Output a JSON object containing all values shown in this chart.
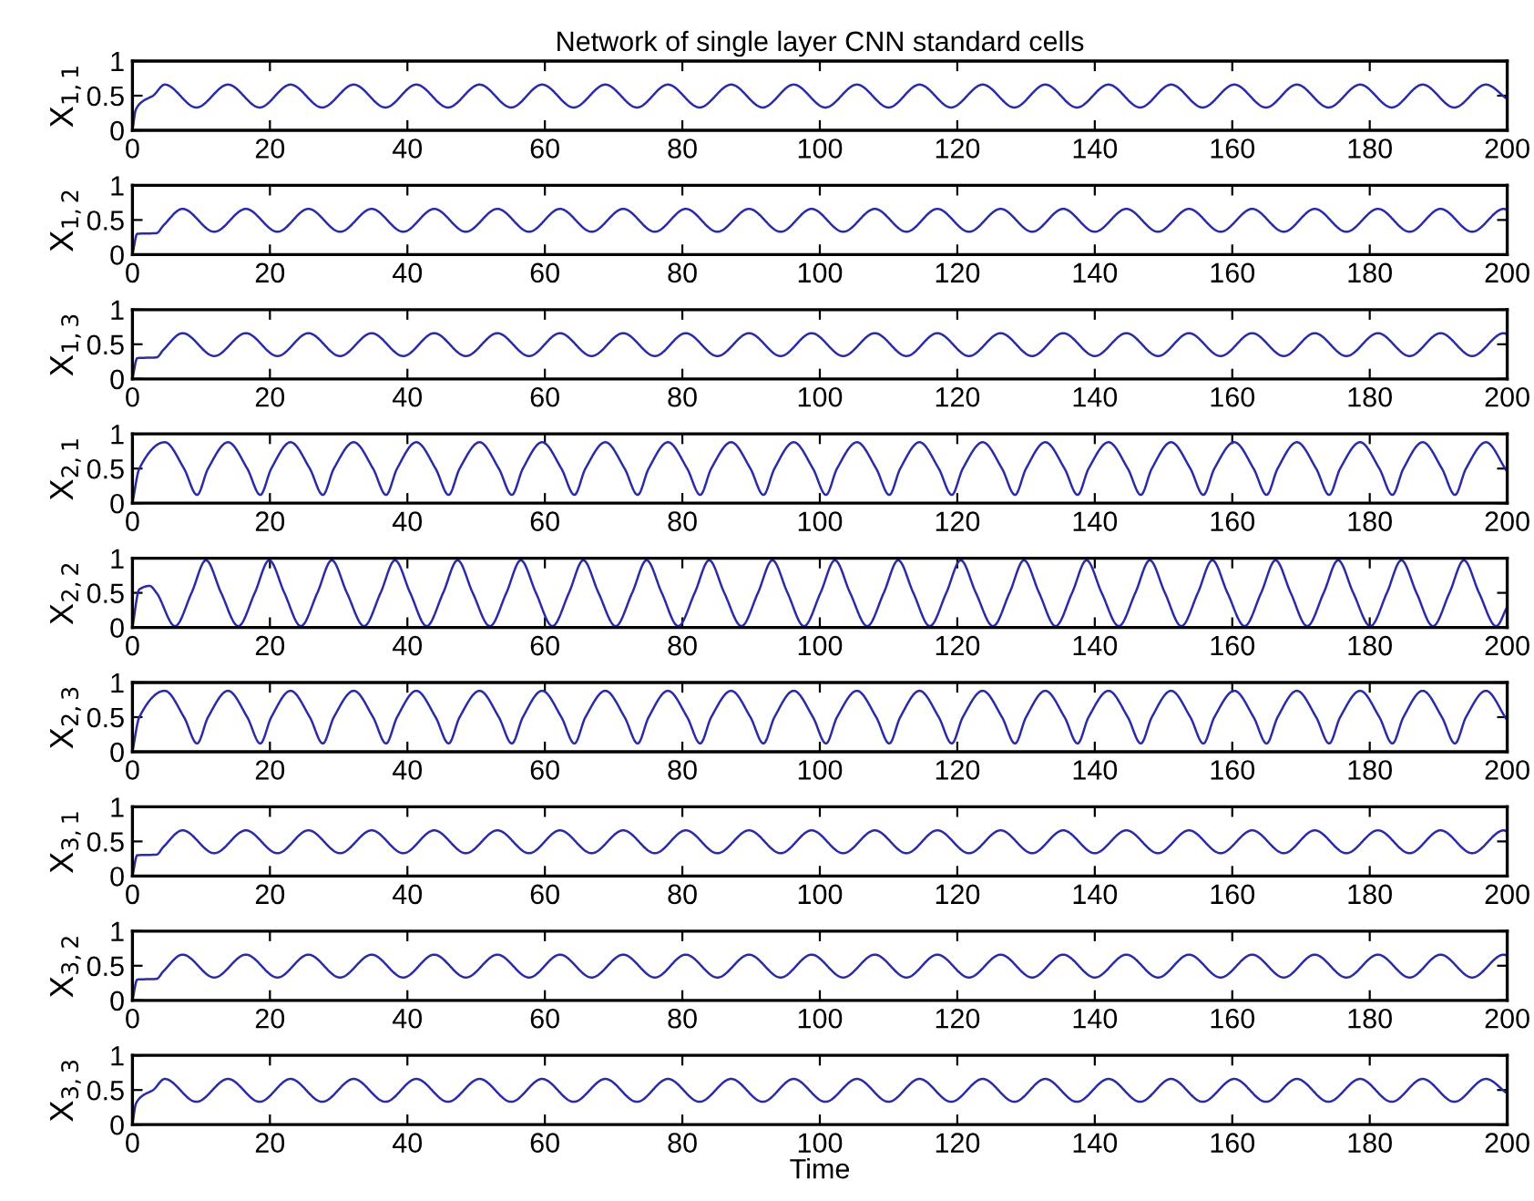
{
  "chart_data": [
    {
      "type": "line",
      "title": "Network of single layer CNN standard cells",
      "ylabel": "X$_{1,1}$",
      "xlim": [
        0,
        200
      ],
      "ylim": [
        0,
        1
      ],
      "xticks": [
        0,
        20,
        40,
        60,
        80,
        100,
        120,
        140,
        160,
        180,
        200
      ],
      "yticks": [
        0,
        0.5,
        1
      ],
      "grid": false,
      "line_style": "solid",
      "marker": "none",
      "series": [
        {
          "color": "#2b2ba6",
          "x": [
            0,
            0.5,
            1.5,
            3,
            4.7,
            9.3,
            13.9,
            18.5,
            23.0,
            27.6,
            32.2,
            36.8,
            41.3,
            45.9,
            50.5,
            55.1,
            59.6,
            64.2,
            68.8,
            73.4,
            77.9,
            82.5,
            87.1,
            91.7,
            96.2,
            100.8,
            105.4,
            110.0,
            114.5,
            119.1,
            123.7,
            128.3,
            132.8,
            137.4,
            142.0,
            146.6,
            151.1,
            155.7,
            160.3,
            164.9,
            169.4,
            174.0,
            178.6,
            183.2,
            187.7,
            192.3,
            196.9,
            200
          ],
          "values": [
            0,
            0.3,
            0.42,
            0.5,
            0.66,
            0.33,
            0.66,
            0.33,
            0.66,
            0.33,
            0.66,
            0.33,
            0.66,
            0.33,
            0.66,
            0.33,
            0.66,
            0.33,
            0.66,
            0.33,
            0.66,
            0.33,
            0.66,
            0.33,
            0.66,
            0.33,
            0.66,
            0.33,
            0.66,
            0.33,
            0.66,
            0.33,
            0.66,
            0.33,
            0.66,
            0.33,
            0.66,
            0.33,
            0.66,
            0.33,
            0.66,
            0.33,
            0.66,
            0.33,
            0.66,
            0.33,
            0.66,
            0.45
          ]
        }
      ]
    },
    {
      "type": "line",
      "ylabel": "X$_{1,2}$",
      "xlim": [
        0,
        200
      ],
      "ylim": [
        0,
        1
      ],
      "xticks": [
        0,
        20,
        40,
        60,
        80,
        100,
        120,
        140,
        160,
        180,
        200
      ],
      "yticks": [
        0,
        0.5,
        1
      ],
      "grid": false,
      "line_style": "solid",
      "marker": "none",
      "series": [
        {
          "color": "#2b2ba6",
          "x": [
            0,
            0.7,
            3.5,
            4.5,
            7.3,
            11.9,
            16.5,
            21.1,
            25.6,
            30.2,
            34.8,
            39.4,
            43.9,
            48.5,
            53.1,
            57.7,
            62.2,
            66.8,
            71.4,
            76.0,
            80.5,
            85.1,
            89.7,
            94.3,
            98.8,
            103.4,
            108.0,
            112.6,
            117.1,
            121.7,
            126.3,
            130.9,
            135.4,
            140.0,
            144.6,
            149.2,
            153.7,
            158.3,
            162.9,
            167.5,
            172.0,
            176.6,
            181.2,
            185.8,
            190.3,
            194.9,
            199.5,
            200
          ],
          "values": [
            0,
            0.3,
            0.31,
            0.42,
            0.66,
            0.33,
            0.66,
            0.33,
            0.66,
            0.33,
            0.66,
            0.33,
            0.66,
            0.33,
            0.66,
            0.33,
            0.66,
            0.33,
            0.66,
            0.33,
            0.66,
            0.33,
            0.66,
            0.33,
            0.66,
            0.33,
            0.66,
            0.33,
            0.66,
            0.33,
            0.66,
            0.33,
            0.66,
            0.33,
            0.66,
            0.33,
            0.66,
            0.33,
            0.66,
            0.33,
            0.66,
            0.33,
            0.66,
            0.33,
            0.66,
            0.33,
            0.66,
            0.64
          ]
        }
      ]
    },
    {
      "type": "line",
      "ylabel": "X$_{1,3}$",
      "xlim": [
        0,
        200
      ],
      "ylim": [
        0,
        1
      ],
      "xticks": [
        0,
        20,
        40,
        60,
        80,
        100,
        120,
        140,
        160,
        180,
        200
      ],
      "yticks": [
        0,
        0.5,
        1
      ],
      "grid": false,
      "line_style": "solid",
      "marker": "none",
      "series": [
        {
          "color": "#2b2ba6",
          "x": [
            0,
            0.7,
            3.5,
            4.5,
            7.3,
            11.9,
            16.5,
            21.1,
            25.6,
            30.2,
            34.8,
            39.4,
            43.9,
            48.5,
            53.1,
            57.7,
            62.2,
            66.8,
            71.4,
            76.0,
            80.5,
            85.1,
            89.7,
            94.3,
            98.8,
            103.4,
            108.0,
            112.6,
            117.1,
            121.7,
            126.3,
            130.9,
            135.4,
            140.0,
            144.6,
            149.2,
            153.7,
            158.3,
            162.9,
            167.5,
            172.0,
            176.6,
            181.2,
            185.8,
            190.3,
            194.9,
            199.5,
            200
          ],
          "values": [
            0,
            0.3,
            0.31,
            0.42,
            0.66,
            0.33,
            0.66,
            0.33,
            0.66,
            0.33,
            0.66,
            0.33,
            0.66,
            0.33,
            0.66,
            0.33,
            0.66,
            0.33,
            0.66,
            0.33,
            0.66,
            0.33,
            0.66,
            0.33,
            0.66,
            0.33,
            0.66,
            0.33,
            0.66,
            0.33,
            0.66,
            0.33,
            0.66,
            0.33,
            0.66,
            0.33,
            0.66,
            0.33,
            0.66,
            0.33,
            0.66,
            0.33,
            0.66,
            0.33,
            0.66,
            0.33,
            0.66,
            0.64
          ]
        }
      ]
    },
    {
      "type": "line",
      "ylabel": "X$_{2,1}$",
      "xlim": [
        0,
        200
      ],
      "ylim": [
        0,
        1
      ],
      "xticks": [
        0,
        20,
        40,
        60,
        80,
        100,
        120,
        140,
        160,
        180,
        200
      ],
      "yticks": [
        0,
        0.5,
        1
      ],
      "grid": false,
      "line_style": "solid",
      "marker": "none",
      "series": [
        {
          "color": "#2b2ba6",
          "x": [
            0,
            1,
            4.7,
            7.5,
            9.4,
            11.0,
            13.9,
            16.7,
            18.6,
            20.2,
            23.0,
            25.8,
            27.7,
            29.3,
            32.2,
            35.0,
            36.9,
            38.5,
            41.3,
            44.1,
            46.0,
            47.6,
            50.5,
            53.3,
            55.2,
            56.8,
            59.6,
            62.4,
            64.3,
            65.9,
            68.8,
            71.6,
            73.5,
            75.1,
            77.9,
            80.7,
            82.6,
            84.2,
            87.1,
            89.9,
            91.8,
            93.4,
            96.2,
            99.0,
            100.9,
            102.5,
            105.4,
            108.2,
            110.1,
            111.7,
            114.5,
            117.3,
            119.2,
            120.8,
            123.7,
            126.5,
            128.4,
            130.0,
            132.8,
            135.6,
            137.5,
            139.1,
            142.0,
            144.8,
            146.7,
            148.3,
            151.1,
            153.9,
            155.8,
            157.4,
            160.3,
            163.1,
            165.0,
            166.6,
            169.4,
            172.2,
            174.1,
            175.7,
            178.6,
            181.4,
            183.3,
            184.9,
            187.7,
            190.5,
            192.4,
            194.0,
            196.9,
            199.7,
            200
          ],
          "values": [
            0,
            0.5,
            0.88,
            0.5,
            0.12,
            0.5,
            0.88,
            0.5,
            0.12,
            0.5,
            0.88,
            0.5,
            0.12,
            0.5,
            0.88,
            0.5,
            0.12,
            0.5,
            0.88,
            0.5,
            0.12,
            0.5,
            0.88,
            0.5,
            0.12,
            0.5,
            0.88,
            0.5,
            0.12,
            0.5,
            0.88,
            0.5,
            0.12,
            0.5,
            0.88,
            0.5,
            0.12,
            0.5,
            0.88,
            0.5,
            0.12,
            0.5,
            0.88,
            0.5,
            0.12,
            0.5,
            0.88,
            0.5,
            0.12,
            0.5,
            0.88,
            0.5,
            0.12,
            0.5,
            0.88,
            0.5,
            0.12,
            0.5,
            0.88,
            0.5,
            0.12,
            0.5,
            0.88,
            0.5,
            0.12,
            0.5,
            0.88,
            0.5,
            0.12,
            0.5,
            0.88,
            0.5,
            0.12,
            0.5,
            0.88,
            0.5,
            0.12,
            0.5,
            0.88,
            0.5,
            0.12,
            0.5,
            0.88,
            0.5,
            0.12,
            0.5,
            0.88,
            0.5,
            0.45
          ]
        }
      ]
    },
    {
      "type": "line",
      "ylabel": "X$_{2,2}$",
      "xlim": [
        0,
        200
      ],
      "ylim": [
        0,
        1
      ],
      "xticks": [
        0,
        20,
        40,
        60,
        80,
        100,
        120,
        140,
        160,
        180,
        200
      ],
      "yticks": [
        0,
        0.5,
        1
      ],
      "grid": false,
      "line_style": "solid",
      "marker": "none",
      "series": [
        {
          "color": "#2b2ba6",
          "x": [
            0,
            1,
            2.5,
            3.5,
            6.2,
            8.6,
            10.7,
            12.9,
            15.4,
            17.8,
            19.9,
            22.1,
            24.5,
            26.9,
            29.0,
            31.2,
            33.7,
            36.1,
            38.2,
            40.4,
            42.8,
            45.2,
            47.3,
            49.5,
            52.0,
            54.4,
            56.5,
            58.7,
            61.1,
            63.5,
            65.6,
            67.8,
            70.3,
            72.7,
            74.8,
            77.0,
            79.4,
            81.8,
            83.9,
            86.1,
            88.6,
            91.0,
            93.1,
            95.3,
            97.7,
            100.1,
            102.2,
            104.4,
            106.9,
            109.3,
            111.4,
            113.6,
            116.0,
            118.4,
            120.5,
            122.7,
            125.2,
            127.6,
            129.7,
            131.9,
            134.3,
            136.7,
            138.8,
            141.0,
            143.5,
            145.9,
            148.0,
            150.2,
            152.6,
            155.0,
            157.1,
            159.3,
            161.8,
            164.2,
            166.3,
            168.5,
            170.9,
            173.3,
            175.4,
            177.6,
            180.1,
            182.5,
            184.6,
            186.8,
            189.2,
            191.6,
            193.7,
            195.9,
            198.4,
            200
          ],
          "values": [
            0,
            0.55,
            0.6,
            0.5,
            0.02,
            0.5,
            0.97,
            0.5,
            0.02,
            0.5,
            0.97,
            0.5,
            0.02,
            0.5,
            0.97,
            0.5,
            0.02,
            0.5,
            0.97,
            0.5,
            0.02,
            0.5,
            0.97,
            0.5,
            0.02,
            0.5,
            0.97,
            0.5,
            0.02,
            0.5,
            0.97,
            0.5,
            0.02,
            0.5,
            0.97,
            0.5,
            0.02,
            0.5,
            0.97,
            0.5,
            0.02,
            0.5,
            0.97,
            0.5,
            0.02,
            0.5,
            0.97,
            0.5,
            0.02,
            0.5,
            0.97,
            0.5,
            0.02,
            0.5,
            0.97,
            0.5,
            0.02,
            0.5,
            0.97,
            0.5,
            0.02,
            0.5,
            0.97,
            0.5,
            0.02,
            0.5,
            0.97,
            0.5,
            0.02,
            0.5,
            0.97,
            0.5,
            0.02,
            0.5,
            0.97,
            0.5,
            0.02,
            0.5,
            0.97,
            0.5,
            0.02,
            0.5,
            0.97,
            0.5,
            0.02,
            0.5,
            0.97,
            0.5,
            0.02,
            0.3
          ]
        }
      ]
    },
    {
      "type": "line",
      "ylabel": "X$_{2,3}$",
      "xlim": [
        0,
        200
      ],
      "ylim": [
        0,
        1
      ],
      "xticks": [
        0,
        20,
        40,
        60,
        80,
        100,
        120,
        140,
        160,
        180,
        200
      ],
      "yticks": [
        0,
        0.5,
        1
      ],
      "grid": false,
      "line_style": "solid",
      "marker": "none",
      "series": [
        {
          "color": "#2b2ba6",
          "x": [
            0,
            1,
            4.7,
            7.5,
            9.4,
            11.0,
            13.9,
            16.7,
            18.6,
            20.2,
            23.0,
            25.8,
            27.7,
            29.3,
            32.2,
            35.0,
            36.9,
            38.5,
            41.3,
            44.1,
            46.0,
            47.6,
            50.5,
            53.3,
            55.2,
            56.8,
            59.6,
            62.4,
            64.3,
            65.9,
            68.8,
            71.6,
            73.5,
            75.1,
            77.9,
            80.7,
            82.6,
            84.2,
            87.1,
            89.9,
            91.8,
            93.4,
            96.2,
            99.0,
            100.9,
            102.5,
            105.4,
            108.2,
            110.1,
            111.7,
            114.5,
            117.3,
            119.2,
            120.8,
            123.7,
            126.5,
            128.4,
            130.0,
            132.8,
            135.6,
            137.5,
            139.1,
            142.0,
            144.8,
            146.7,
            148.3,
            151.1,
            153.9,
            155.8,
            157.4,
            160.3,
            163.1,
            165.0,
            166.6,
            169.4,
            172.2,
            174.1,
            175.7,
            178.6,
            181.4,
            183.3,
            184.9,
            187.7,
            190.5,
            192.4,
            194.0,
            196.9,
            199.7,
            200
          ],
          "values": [
            0,
            0.5,
            0.88,
            0.5,
            0.12,
            0.5,
            0.88,
            0.5,
            0.12,
            0.5,
            0.88,
            0.5,
            0.12,
            0.5,
            0.88,
            0.5,
            0.12,
            0.5,
            0.88,
            0.5,
            0.12,
            0.5,
            0.88,
            0.5,
            0.12,
            0.5,
            0.88,
            0.5,
            0.12,
            0.5,
            0.88,
            0.5,
            0.12,
            0.5,
            0.88,
            0.5,
            0.12,
            0.5,
            0.88,
            0.5,
            0.12,
            0.5,
            0.88,
            0.5,
            0.12,
            0.5,
            0.88,
            0.5,
            0.12,
            0.5,
            0.88,
            0.5,
            0.12,
            0.5,
            0.88,
            0.5,
            0.12,
            0.5,
            0.88,
            0.5,
            0.12,
            0.5,
            0.88,
            0.5,
            0.12,
            0.5,
            0.88,
            0.5,
            0.12,
            0.5,
            0.88,
            0.5,
            0.12,
            0.5,
            0.88,
            0.5,
            0.12,
            0.5,
            0.88,
            0.5,
            0.12,
            0.5,
            0.88,
            0.5,
            0.12,
            0.5,
            0.88,
            0.5,
            0.45
          ]
        }
      ]
    },
    {
      "type": "line",
      "ylabel": "X$_{3,1}$",
      "xlim": [
        0,
        200
      ],
      "ylim": [
        0,
        1
      ],
      "xticks": [
        0,
        20,
        40,
        60,
        80,
        100,
        120,
        140,
        160,
        180,
        200
      ],
      "yticks": [
        0,
        0.5,
        1
      ],
      "grid": false,
      "line_style": "solid",
      "marker": "none",
      "series": [
        {
          "color": "#2b2ba6",
          "x": [
            0,
            0.7,
            3.5,
            4.5,
            7.3,
            11.9,
            16.5,
            21.1,
            25.6,
            30.2,
            34.8,
            39.4,
            43.9,
            48.5,
            53.1,
            57.7,
            62.2,
            66.8,
            71.4,
            76.0,
            80.5,
            85.1,
            89.7,
            94.3,
            98.8,
            103.4,
            108.0,
            112.6,
            117.1,
            121.7,
            126.3,
            130.9,
            135.4,
            140.0,
            144.6,
            149.2,
            153.7,
            158.3,
            162.9,
            167.5,
            172.0,
            176.6,
            181.2,
            185.8,
            190.3,
            194.9,
            199.5,
            200
          ],
          "values": [
            0,
            0.3,
            0.31,
            0.42,
            0.66,
            0.33,
            0.66,
            0.33,
            0.66,
            0.33,
            0.66,
            0.33,
            0.66,
            0.33,
            0.66,
            0.33,
            0.66,
            0.33,
            0.66,
            0.33,
            0.66,
            0.33,
            0.66,
            0.33,
            0.66,
            0.33,
            0.66,
            0.33,
            0.66,
            0.33,
            0.66,
            0.33,
            0.66,
            0.33,
            0.66,
            0.33,
            0.66,
            0.33,
            0.66,
            0.33,
            0.66,
            0.33,
            0.66,
            0.33,
            0.66,
            0.33,
            0.66,
            0.64
          ]
        }
      ]
    },
    {
      "type": "line",
      "ylabel": "X$_{3,2}$",
      "xlim": [
        0,
        200
      ],
      "ylim": [
        0,
        1
      ],
      "xticks": [
        0,
        20,
        40,
        60,
        80,
        100,
        120,
        140,
        160,
        180,
        200
      ],
      "yticks": [
        0,
        0.5,
        1
      ],
      "grid": false,
      "line_style": "solid",
      "marker": "none",
      "series": [
        {
          "color": "#2b2ba6",
          "x": [
            0,
            0.7,
            3.5,
            4.5,
            7.3,
            11.9,
            16.5,
            21.1,
            25.6,
            30.2,
            34.8,
            39.4,
            43.9,
            48.5,
            53.1,
            57.7,
            62.2,
            66.8,
            71.4,
            76.0,
            80.5,
            85.1,
            89.7,
            94.3,
            98.8,
            103.4,
            108.0,
            112.6,
            117.1,
            121.7,
            126.3,
            130.9,
            135.4,
            140.0,
            144.6,
            149.2,
            153.7,
            158.3,
            162.9,
            167.5,
            172.0,
            176.6,
            181.2,
            185.8,
            190.3,
            194.9,
            199.5,
            200
          ],
          "values": [
            0,
            0.3,
            0.31,
            0.42,
            0.66,
            0.33,
            0.66,
            0.33,
            0.66,
            0.33,
            0.66,
            0.33,
            0.66,
            0.33,
            0.66,
            0.33,
            0.66,
            0.33,
            0.66,
            0.33,
            0.66,
            0.33,
            0.66,
            0.33,
            0.66,
            0.33,
            0.66,
            0.33,
            0.66,
            0.33,
            0.66,
            0.33,
            0.66,
            0.33,
            0.66,
            0.33,
            0.66,
            0.33,
            0.66,
            0.33,
            0.66,
            0.33,
            0.66,
            0.33,
            0.66,
            0.33,
            0.66,
            0.64
          ]
        }
      ]
    },
    {
      "type": "line",
      "ylabel": "X$_{3,3}$",
      "xlabel": "Time",
      "xlim": [
        0,
        200
      ],
      "ylim": [
        0,
        1
      ],
      "xticks": [
        0,
        20,
        40,
        60,
        80,
        100,
        120,
        140,
        160,
        180,
        200
      ],
      "yticks": [
        0,
        0.5,
        1
      ],
      "grid": false,
      "line_style": "solid",
      "marker": "none",
      "series": [
        {
          "color": "#2b2ba6",
          "x": [
            0,
            0.5,
            1.5,
            3,
            4.7,
            9.3,
            13.9,
            18.5,
            23.0,
            27.6,
            32.2,
            36.8,
            41.3,
            45.9,
            50.5,
            55.1,
            59.6,
            64.2,
            68.8,
            73.4,
            77.9,
            82.5,
            87.1,
            91.7,
            96.2,
            100.8,
            105.4,
            110.0,
            114.5,
            119.1,
            123.7,
            128.3,
            132.8,
            137.4,
            142.0,
            146.6,
            151.1,
            155.7,
            160.3,
            164.9,
            169.4,
            174.0,
            178.6,
            183.2,
            187.7,
            192.3,
            196.9,
            200
          ],
          "values": [
            0,
            0.3,
            0.42,
            0.5,
            0.66,
            0.33,
            0.66,
            0.33,
            0.66,
            0.33,
            0.66,
            0.33,
            0.66,
            0.33,
            0.66,
            0.33,
            0.66,
            0.33,
            0.66,
            0.33,
            0.66,
            0.33,
            0.66,
            0.33,
            0.66,
            0.33,
            0.66,
            0.33,
            0.66,
            0.33,
            0.66,
            0.33,
            0.66,
            0.33,
            0.66,
            0.33,
            0.66,
            0.33,
            0.66,
            0.33,
            0.66,
            0.33,
            0.66,
            0.33,
            0.66,
            0.33,
            0.66,
            0.45
          ]
        }
      ]
    }
  ]
}
